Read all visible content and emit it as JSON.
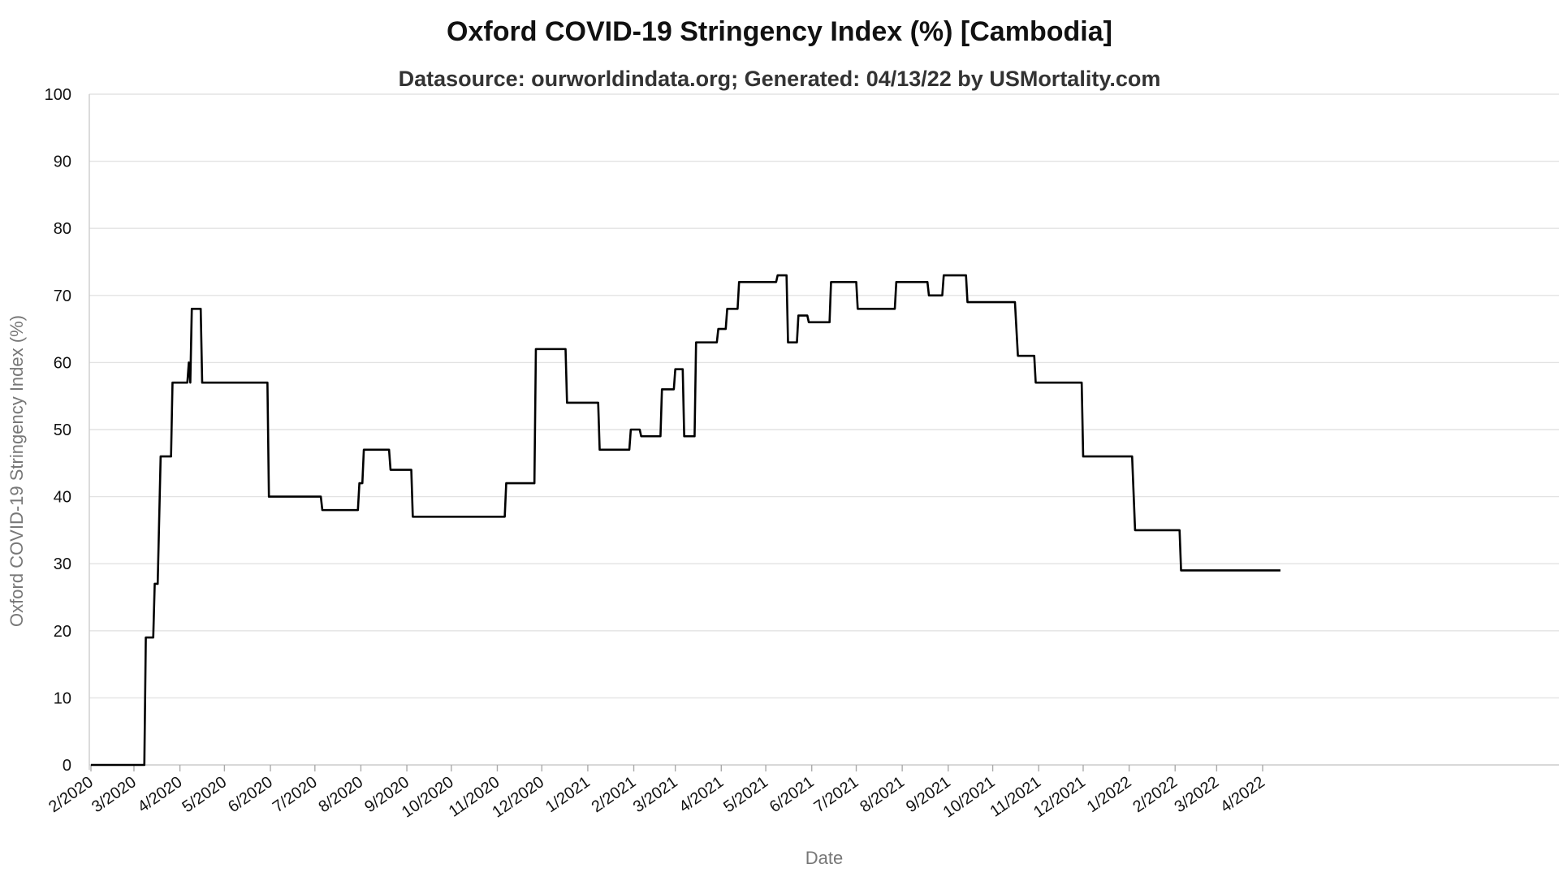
{
  "chart_data": {
    "type": "line",
    "title": "Oxford COVID-19 Stringency Index (%) [Cambodia]",
    "subtitle": "Datasource: ourworldindata.org; Generated: 04/13/22 by USMortality.com",
    "xlabel": "Date",
    "ylabel": "Oxford COVID-19 Stringency Index (%)",
    "ylim": [
      0,
      100
    ],
    "yticks": [
      0,
      10,
      20,
      30,
      40,
      50,
      60,
      70,
      80,
      90,
      100
    ],
    "xlim": [
      "2020-02-01",
      "2022-04-13"
    ],
    "xticks": [
      {
        "date": "2020-02-01",
        "label": "2/2020"
      },
      {
        "date": "2020-03-01",
        "label": "3/2020"
      },
      {
        "date": "2020-04-01",
        "label": "4/2020"
      },
      {
        "date": "2020-05-01",
        "label": "5/2020"
      },
      {
        "date": "2020-06-01",
        "label": "6/2020"
      },
      {
        "date": "2020-07-01",
        "label": "7/2020"
      },
      {
        "date": "2020-08-01",
        "label": "8/2020"
      },
      {
        "date": "2020-09-01",
        "label": "9/2020"
      },
      {
        "date": "2020-10-01",
        "label": "10/2020"
      },
      {
        "date": "2020-11-01",
        "label": "11/2020"
      },
      {
        "date": "2020-12-01",
        "label": "12/2020"
      },
      {
        "date": "2021-01-01",
        "label": "1/2021"
      },
      {
        "date": "2021-02-01",
        "label": "2/2021"
      },
      {
        "date": "2021-03-01",
        "label": "3/2021"
      },
      {
        "date": "2021-04-01",
        "label": "4/2021"
      },
      {
        "date": "2021-05-01",
        "label": "5/2021"
      },
      {
        "date": "2021-06-01",
        "label": "6/2021"
      },
      {
        "date": "2021-07-01",
        "label": "7/2021"
      },
      {
        "date": "2021-08-01",
        "label": "8/2021"
      },
      {
        "date": "2021-09-01",
        "label": "9/2021"
      },
      {
        "date": "2021-10-01",
        "label": "10/2021"
      },
      {
        "date": "2021-11-01",
        "label": "11/2021"
      },
      {
        "date": "2021-12-01",
        "label": "12/2021"
      },
      {
        "date": "2022-01-01",
        "label": "1/2022"
      },
      {
        "date": "2022-02-01",
        "label": "2/2022"
      },
      {
        "date": "2022-03-01",
        "label": "3/2022"
      },
      {
        "date": "2022-04-01",
        "label": "4/2022"
      }
    ],
    "grid": true,
    "legend": "none",
    "series": [
      {
        "color": "#000000",
        "points": [
          [
            "2020-02-01",
            0
          ],
          [
            "2020-03-08",
            0
          ],
          [
            "2020-03-09",
            19
          ],
          [
            "2020-03-14",
            19
          ],
          [
            "2020-03-15",
            27
          ],
          [
            "2020-03-17",
            27
          ],
          [
            "2020-03-19",
            46
          ],
          [
            "2020-03-26",
            46
          ],
          [
            "2020-03-27",
            57
          ],
          [
            "2020-04-06",
            57
          ],
          [
            "2020-04-07",
            60
          ],
          [
            "2020-04-08",
            57
          ],
          [
            "2020-04-09",
            68
          ],
          [
            "2020-04-15",
            68
          ],
          [
            "2020-04-16",
            57
          ],
          [
            "2020-05-30",
            57
          ],
          [
            "2020-05-31",
            40
          ],
          [
            "2020-07-05",
            40
          ],
          [
            "2020-07-06",
            38
          ],
          [
            "2020-07-30",
            38
          ],
          [
            "2020-07-31",
            42
          ],
          [
            "2020-08-02",
            42
          ],
          [
            "2020-08-03",
            47
          ],
          [
            "2020-08-20",
            47
          ],
          [
            "2020-08-21",
            44
          ],
          [
            "2020-09-04",
            44
          ],
          [
            "2020-09-05",
            37
          ],
          [
            "2020-11-06",
            37
          ],
          [
            "2020-11-07",
            42
          ],
          [
            "2020-11-26",
            42
          ],
          [
            "2020-11-27",
            62
          ],
          [
            "2020-12-17",
            62
          ],
          [
            "2020-12-18",
            54
          ],
          [
            "2021-01-08",
            54
          ],
          [
            "2021-01-09",
            47
          ],
          [
            "2021-01-29",
            47
          ],
          [
            "2021-01-30",
            50
          ],
          [
            "2021-02-05",
            50
          ],
          [
            "2021-02-06",
            49
          ],
          [
            "2021-02-19",
            49
          ],
          [
            "2021-02-20",
            56
          ],
          [
            "2021-02-28",
            56
          ],
          [
            "2021-03-01",
            59
          ],
          [
            "2021-03-06",
            59
          ],
          [
            "2021-03-07",
            49
          ],
          [
            "2021-03-14",
            49
          ],
          [
            "2021-03-15",
            63
          ],
          [
            "2021-03-29",
            63
          ],
          [
            "2021-03-30",
            65
          ],
          [
            "2021-04-04",
            65
          ],
          [
            "2021-04-05",
            68
          ],
          [
            "2021-04-12",
            68
          ],
          [
            "2021-04-13",
            72
          ],
          [
            "2021-05-08",
            72
          ],
          [
            "2021-05-09",
            73
          ],
          [
            "2021-05-15",
            73
          ],
          [
            "2021-05-16",
            63
          ],
          [
            "2021-05-22",
            63
          ],
          [
            "2021-05-23",
            67
          ],
          [
            "2021-05-29",
            67
          ],
          [
            "2021-05-30",
            66
          ],
          [
            "2021-06-13",
            66
          ],
          [
            "2021-06-14",
            72
          ],
          [
            "2021-07-01",
            72
          ],
          [
            "2021-07-02",
            68
          ],
          [
            "2021-07-27",
            68
          ],
          [
            "2021-07-28",
            72
          ],
          [
            "2021-08-18",
            72
          ],
          [
            "2021-08-19",
            70
          ],
          [
            "2021-08-28",
            70
          ],
          [
            "2021-08-29",
            73
          ],
          [
            "2021-09-13",
            73
          ],
          [
            "2021-09-14",
            69
          ],
          [
            "2021-10-16",
            69
          ],
          [
            "2021-10-18",
            61
          ],
          [
            "2021-10-29",
            61
          ],
          [
            "2021-10-30",
            57
          ],
          [
            "2021-11-30",
            57
          ],
          [
            "2021-12-01",
            46
          ],
          [
            "2022-01-03",
            46
          ],
          [
            "2022-01-05",
            35
          ],
          [
            "2022-02-04",
            35
          ],
          [
            "2022-02-05",
            29
          ],
          [
            "2022-04-13",
            29
          ]
        ]
      }
    ]
  }
}
